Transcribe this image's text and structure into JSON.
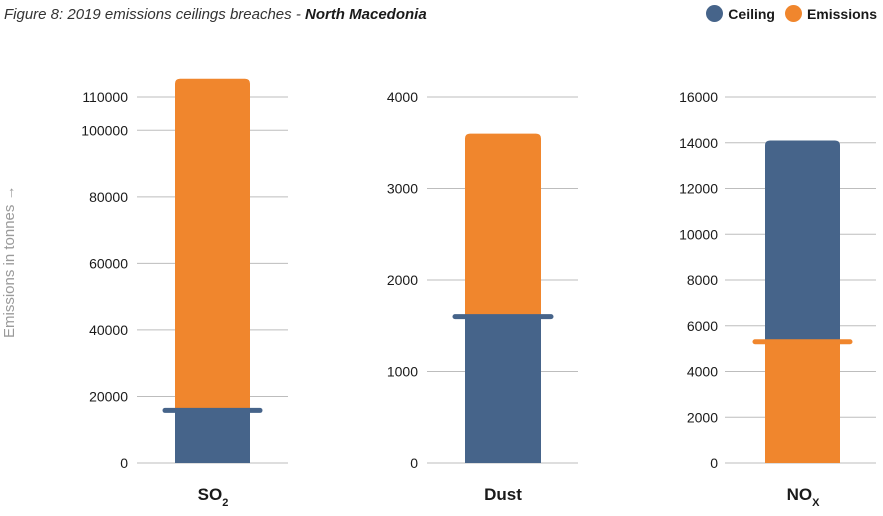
{
  "title": {
    "prefix": "Figure 8: 2019 emissions ceilings breaches - ",
    "country": "North Macedonia"
  },
  "legend": [
    {
      "label": "Ceiling",
      "color": "#46648a"
    },
    {
      "label": "Emissions",
      "color": "#f0862d"
    }
  ],
  "y_axis_label": "Emissions in tonnes →",
  "colors": {
    "ceiling": "#46648a",
    "emissions": "#f0862d",
    "grid": "#bdbdbd"
  },
  "chart_data": [
    {
      "type": "bar",
      "category": "SO",
      "category_subscript": "2",
      "ceiling": 15800,
      "emissions": 115500,
      "ticks": [
        "0",
        "20000",
        "40000",
        "60000",
        "80000",
        "100000",
        "110000"
      ],
      "tick_values": [
        0,
        20000,
        40000,
        60000,
        80000,
        100000,
        110000
      ],
      "ylim": [
        0,
        120000
      ]
    },
    {
      "type": "bar",
      "category": "Dust",
      "category_subscript": "",
      "ceiling": 1600,
      "emissions": 3600,
      "ticks": [
        "0",
        "1000",
        "2000",
        "3000",
        "4000"
      ],
      "tick_values": [
        0,
        1000,
        2000,
        3000,
        4000
      ],
      "ylim": [
        0,
        4000
      ]
    },
    {
      "type": "bar",
      "category": "NO",
      "category_subscript": "X",
      "ceiling": 14100,
      "emissions": 5300,
      "ticks": [
        "0",
        "2000",
        "4000",
        "6000",
        "8000",
        "10000",
        "12000",
        "14000",
        "16000"
      ],
      "tick_values": [
        0,
        2000,
        4000,
        6000,
        8000,
        10000,
        12000,
        14000,
        16000
      ],
      "ylim": [
        0,
        16000
      ]
    }
  ]
}
